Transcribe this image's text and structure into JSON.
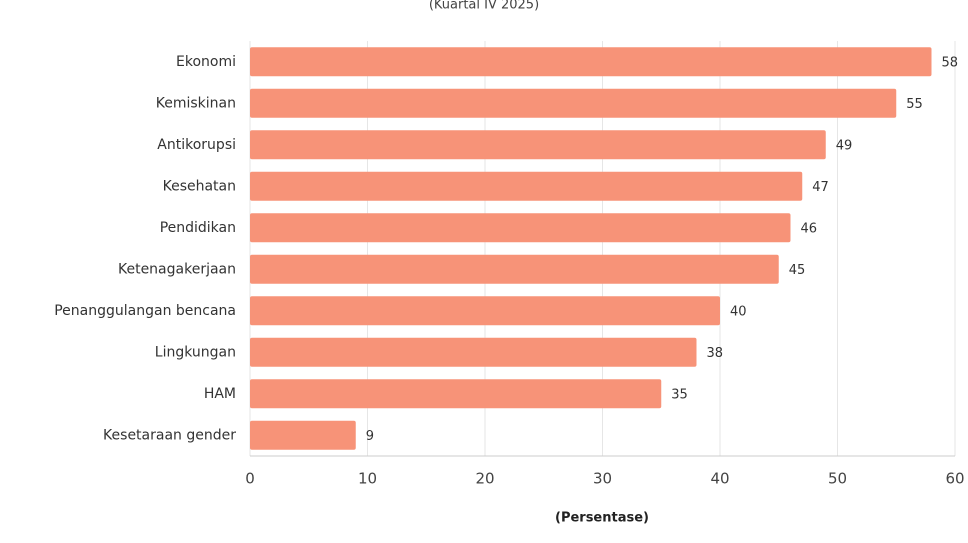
{
  "chart_data": {
    "type": "bar",
    "orientation": "horizontal",
    "subtitle": "(Kuartal IV 2025)",
    "x_label": "(Persentase)",
    "categories": [
      "Ekonomi",
      "Kemiskinan",
      "Antikorupsi",
      "Kesehatan",
      "Pendidikan",
      "Ketenagakerjaan",
      "Penanggulangan bencana",
      "Lingkungan",
      "HAM",
      "Kesetaraan gender"
    ],
    "values": [
      58,
      55,
      49,
      47,
      46,
      45,
      40,
      38,
      35,
      9
    ],
    "color": "#f79378",
    "xlim": [
      0,
      60
    ],
    "xticks": [
      0,
      10,
      20,
      30,
      40,
      50,
      60
    ],
    "grid": true
  }
}
